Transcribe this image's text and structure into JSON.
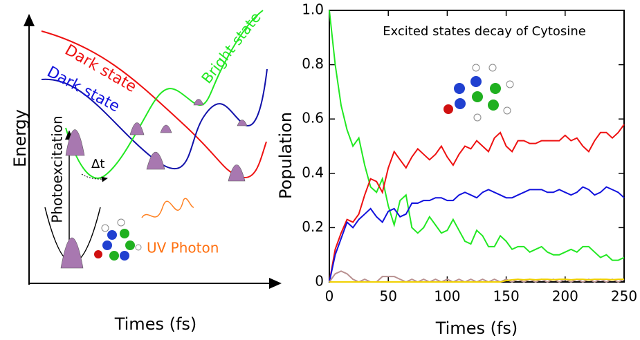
{
  "diagram": {
    "y_label": "Energy",
    "x_label": "Times (fs)",
    "red_state": "Dark state",
    "blue_state": "Dark state",
    "green_state": "Bright state",
    "excitation": "Photoexcitation",
    "delay": "Δt",
    "photon": "UV Photon"
  },
  "chart_data": {
    "type": "line",
    "title": "Excited states decay of Cytosine",
    "x_label": "Times (fs)",
    "y_label": "Population",
    "xlim": [
      0,
      250
    ],
    "ylim": [
      0,
      1.0
    ],
    "xticks": [
      0,
      50,
      100,
      150,
      200,
      250
    ],
    "yticks": [
      0,
      0.2,
      0.4,
      0.6,
      0.8,
      {
        "value": 1,
        "label": "1.0"
      }
    ],
    "x": [
      0,
      5,
      10,
      15,
      20,
      25,
      30,
      35,
      40,
      45,
      50,
      55,
      60,
      65,
      70,
      75,
      80,
      85,
      90,
      95,
      100,
      105,
      110,
      115,
      120,
      125,
      130,
      135,
      140,
      145,
      150,
      155,
      160,
      165,
      170,
      175,
      180,
      185,
      190,
      195,
      200,
      205,
      210,
      215,
      220,
      225,
      230,
      235,
      240,
      245,
      250
    ],
    "series": [
      {
        "color": "#22e822",
        "values": [
          1.0,
          0.8,
          0.65,
          0.56,
          0.5,
          0.53,
          0.43,
          0.35,
          0.33,
          0.38,
          0.28,
          0.21,
          0.3,
          0.32,
          0.2,
          0.18,
          0.2,
          0.24,
          0.21,
          0.18,
          0.19,
          0.23,
          0.19,
          0.15,
          0.14,
          0.19,
          0.17,
          0.13,
          0.13,
          0.17,
          0.15,
          0.12,
          0.13,
          0.13,
          0.11,
          0.12,
          0.13,
          0.11,
          0.1,
          0.1,
          0.11,
          0.12,
          0.11,
          0.13,
          0.13,
          0.11,
          0.09,
          0.1,
          0.08,
          0.08,
          0.09
        ]
      },
      {
        "color": "#ee1111",
        "values": [
          0,
          0.12,
          0.18,
          0.23,
          0.22,
          0.25,
          0.32,
          0.38,
          0.37,
          0.33,
          0.42,
          0.48,
          0.45,
          0.42,
          0.46,
          0.49,
          0.47,
          0.45,
          0.47,
          0.5,
          0.46,
          0.43,
          0.47,
          0.5,
          0.49,
          0.52,
          0.5,
          0.48,
          0.53,
          0.55,
          0.5,
          0.48,
          0.52,
          0.52,
          0.51,
          0.51,
          0.52,
          0.52,
          0.52,
          0.52,
          0.54,
          0.52,
          0.53,
          0.5,
          0.48,
          0.52,
          0.55,
          0.55,
          0.53,
          0.55,
          0.58
        ]
      },
      {
        "color": "#1111dd",
        "values": [
          0,
          0.1,
          0.16,
          0.22,
          0.2,
          0.23,
          0.25,
          0.27,
          0.24,
          0.22,
          0.26,
          0.27,
          0.24,
          0.25,
          0.29,
          0.29,
          0.3,
          0.3,
          0.31,
          0.31,
          0.3,
          0.3,
          0.32,
          0.33,
          0.32,
          0.31,
          0.33,
          0.34,
          0.33,
          0.32,
          0.31,
          0.31,
          0.32,
          0.33,
          0.34,
          0.34,
          0.34,
          0.33,
          0.33,
          0.34,
          0.33,
          0.32,
          0.33,
          0.35,
          0.34,
          0.32,
          0.33,
          0.35,
          0.34,
          0.33,
          0.31
        ]
      },
      {
        "color": "#b89090",
        "values": [
          0,
          0.03,
          0.04,
          0.03,
          0.01,
          0,
          0.01,
          0,
          0,
          0.02,
          0.02,
          0.02,
          0.01,
          0,
          0.01,
          0,
          0.01,
          0,
          0.01,
          0,
          0.01,
          0,
          0.01,
          0,
          0.01,
          0,
          0.01,
          0,
          0.01,
          0,
          0.01,
          0,
          0.01,
          0,
          0.01,
          0,
          0.01,
          0,
          0.01,
          0,
          0.01,
          0,
          0.01,
          0,
          0.01,
          0,
          0.01,
          0,
          0.01,
          0,
          0.01
        ]
      },
      {
        "color": "#f0d000",
        "values": [
          0,
          0,
          0,
          0,
          0,
          0,
          0,
          0,
          0,
          0,
          0,
          0,
          0,
          0,
          0,
          0,
          0,
          0,
          0,
          0,
          0,
          0,
          0,
          0,
          0,
          0,
          0,
          0,
          0,
          0,
          0.005,
          0.008,
          0.01,
          0.008,
          0.01,
          0.008,
          0.01,
          0.01,
          0.008,
          0.01,
          0.01,
          0.008,
          0.01,
          0.01,
          0.008,
          0.01,
          0.01,
          0.01,
          0.008,
          0.01,
          0.01
        ]
      }
    ]
  }
}
